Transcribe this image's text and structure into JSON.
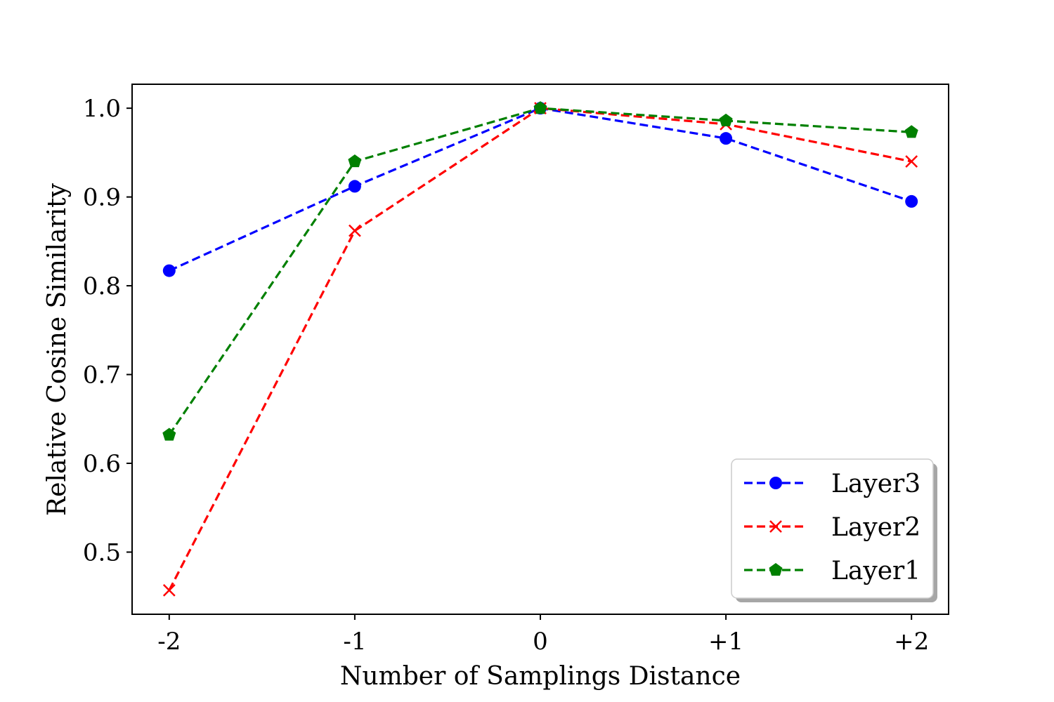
{
  "chart_data": {
    "type": "line",
    "title": "",
    "xlabel": "Number of Samplings Distance",
    "ylabel": "Relative Cosine Similarity",
    "categories": [
      "-2",
      "-1",
      "0",
      "+1",
      "+2"
    ],
    "x": [
      -2,
      -1,
      0,
      1,
      2
    ],
    "xlim": [
      -2.2,
      2.2
    ],
    "ylim": [
      0.43,
      1.027
    ],
    "yticks": [
      0.5,
      0.6,
      0.7,
      0.8,
      0.9,
      1.0
    ],
    "ytick_labels": [
      "0.5",
      "0.6",
      "0.7",
      "0.8",
      "0.9",
      "1.0"
    ],
    "grid": false,
    "legend_position": "lower-right",
    "series": [
      {
        "name": "Layer3",
        "color": "#0000ff",
        "marker": "circle",
        "linestyle": "dashed",
        "values": [
          0.817,
          0.912,
          1.0,
          0.966,
          0.895
        ]
      },
      {
        "name": "Layer2",
        "color": "#ff0000",
        "marker": "x",
        "linestyle": "dashed",
        "values": [
          0.457,
          0.862,
          1.0,
          0.982,
          0.94
        ]
      },
      {
        "name": "Layer1",
        "color": "#008000",
        "marker": "pentagon",
        "linestyle": "dashed",
        "values": [
          0.632,
          0.94,
          1.0,
          0.986,
          0.973
        ]
      }
    ]
  }
}
